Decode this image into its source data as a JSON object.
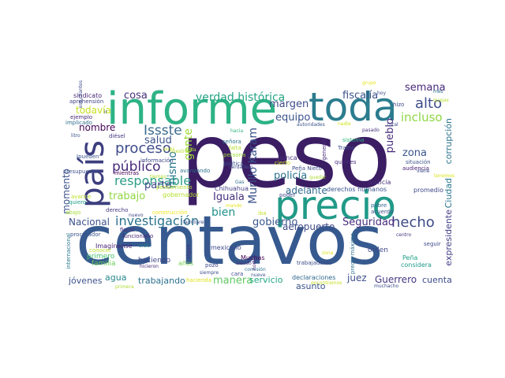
{
  "words": [
    {
      "text": "peso",
      "color": "#3b1d64"
    },
    {
      "text": "centavos",
      "color": "#365a8f"
    },
    {
      "text": "informe",
      "color": "#2db385"
    },
    {
      "text": "toda",
      "color": "#2b7c8e"
    },
    {
      "text": "precio",
      "color": "#219a88"
    },
    {
      "text": "país",
      "color": "#3c3e7f"
    },
    {
      "text": "investigación",
      "color": "#2b748c"
    },
    {
      "text": "responsable",
      "color": "#2d9e87"
    },
    {
      "text": "proceso",
      "color": "#3e4c8a"
    },
    {
      "text": "Issste",
      "color": "#3a6b8f"
    },
    {
      "text": "público",
      "color": "#472a7a"
    },
    {
      "text": "hecho",
      "color": "#3d4b87"
    },
    {
      "text": "alto",
      "color": "#3e4c8a"
    },
    {
      "text": "verdad histórica",
      "color": "#25a484"
    },
    {
      "text": "fiscalía",
      "color": "#3b528b"
    },
    {
      "text": "semana",
      "color": "#472a7a"
    },
    {
      "text": "incluso",
      "color": "#8fd744"
    },
    {
      "text": "cosa",
      "color": "#46307e"
    },
    {
      "text": "margen",
      "color": "#3e4c8a"
    },
    {
      "text": "todavía",
      "color": "#c8e020"
    },
    {
      "text": "nombre",
      "color": "#440154"
    },
    {
      "text": "momento",
      "color": "#3b528b"
    },
    {
      "text": "trabajo",
      "color": "#90d743"
    },
    {
      "text": "parte",
      "color": "#3e4989"
    },
    {
      "text": "salud",
      "color": "#3b528b"
    },
    {
      "text": "mismo",
      "color": "#2a788e"
    },
    {
      "text": "gente",
      "color": "#9fda3a"
    },
    {
      "text": "bien",
      "color": "#21918c"
    },
    {
      "text": "Iguala",
      "color": "#46327e"
    },
    {
      "text": "Murillo Karam",
      "color": "#3b528b"
    },
    {
      "text": "gobierno",
      "color": "#39568c"
    },
    {
      "text": "equipo",
      "color": "#3b528b"
    },
    {
      "text": "policía",
      "color": "#2c728e"
    },
    {
      "text": "pueblo",
      "color": "#472d7b"
    },
    {
      "text": "zona",
      "color": "#3a548c"
    },
    {
      "text": "adelante",
      "color": "#31688e"
    },
    {
      "text": "Seguridad",
      "color": "#472d7b"
    },
    {
      "text": "aeropuerto",
      "color": "#3e4a89"
    },
    {
      "text": "expresidente",
      "color": "#433e85"
    },
    {
      "text": "Ciudad",
      "color": "#2a788e"
    },
    {
      "text": "corrupción",
      "color": "#2c738e"
    },
    {
      "text": "Nacional",
      "color": "#3b528b"
    },
    {
      "text": "agua",
      "color": "#25858e"
    },
    {
      "text": "trabajando",
      "color": "#2d708e"
    },
    {
      "text": "manera",
      "color": "#5ec962"
    },
    {
      "text": "servicio",
      "color": "#21a685"
    },
    {
      "text": "asunto",
      "color": "#3a538b"
    },
    {
      "text": "juez",
      "color": "#3d4e8a"
    },
    {
      "text": "Guerrero",
      "color": "#453882"
    },
    {
      "text": "cuenta",
      "color": "#3e4c8a"
    },
    {
      "text": "jóvenes",
      "color": "#3b528b"
    },
    {
      "text": "hacienda",
      "color": "#dde318"
    },
    {
      "text": "gobernador",
      "color": "#b5de2b"
    },
    {
      "text": "derechos humanos",
      "color": "#3a548c"
    },
    {
      "text": "justicia",
      "color": "#46337f"
    },
    {
      "text": "promedio",
      "color": "#3e4989"
    },
    {
      "text": "Chihuahua",
      "color": "#433d84"
    },
    {
      "text": "primero",
      "color": "#48c16e"
    },
    {
      "text": "Imagínense",
      "color": "#482475"
    },
    {
      "text": "familia",
      "color": "#6ccd5a"
    },
    {
      "text": "haciendo",
      "color": "#404688"
    },
    {
      "text": "mexicano",
      "color": "#3f4889"
    },
    {
      "text": "Muchas",
      "color": "#440154"
    },
    {
      "text": "orden",
      "color": "#3e4a89"
    },
    {
      "text": "Peña",
      "color": "#1fa088"
    },
    {
      "text": "considera",
      "color": "#1e9b8a"
    },
    {
      "text": "declaraciones",
      "color": "#31688e"
    },
    {
      "text": "años",
      "color": "#7ad151"
    },
    {
      "text": "trabajadores",
      "color": "#3e4a89"
    },
    {
      "text": "sindicato",
      "color": "#482677"
    },
    {
      "text": "aprehensión",
      "color": "#414487"
    },
    {
      "text": "ejemplo",
      "color": "#482878"
    },
    {
      "text": "implicado",
      "color": "#2e6e8e"
    },
    {
      "text": "litro",
      "color": "#3a538b"
    },
    {
      "text": "diésel",
      "color": "#46337f"
    },
    {
      "text": "Ipueden",
      "color": "#3b528b"
    },
    {
      "text": "presupuesto",
      "color": "#3b528b"
    },
    {
      "text": "mientras",
      "color": "#440154"
    },
    {
      "text": "información",
      "color": "#3f4788"
    },
    {
      "text": "avanzando",
      "color": "#2d708e"
    },
    {
      "text": "pensamiento",
      "color": "#b5de2b"
    },
    {
      "text": "avance",
      "color": "#bddf26"
    },
    {
      "text": "quiero",
      "color": "#1fa088"
    },
    {
      "text": "abajo",
      "color": "#a8db34"
    },
    {
      "text": "derecho",
      "color": "#443983"
    },
    {
      "text": "nuevo",
      "color": "#404688"
    },
    {
      "text": "construcción",
      "color": "#efe51c"
    },
    {
      "text": "fiscal",
      "color": "#472a7a"
    },
    {
      "text": "sido",
      "color": "#277f8e"
    },
    {
      "text": "conocer",
      "color": "#b8de29"
    },
    {
      "text": "internacional",
      "color": "#2a768e"
    },
    {
      "text": "procurador",
      "color": "#3a548c"
    },
    {
      "text": "funcionario",
      "color": "#482475"
    },
    {
      "text": "sigue",
      "color": "#46337f"
    },
    {
      "text": "mina",
      "color": "#3b528b"
    },
    {
      "text": "señora",
      "color": "#2c738e"
    },
    {
      "text": "falta",
      "color": "#b8de29"
    },
    {
      "text": "persona",
      "color": "#a2da37"
    },
    {
      "text": "política",
      "color": "#3b528b"
    },
    {
      "text": "nunca",
      "color": "#46327e"
    },
    {
      "text": "cierto",
      "color": "#c8e020"
    },
    {
      "text": "Peña Nieto",
      "color": "#3e4a89"
    },
    {
      "text": "quiénes",
      "color": "#472d7b"
    },
    {
      "text": "Tramo",
      "color": "#3e4c8a"
    },
    {
      "text": "poder",
      "color": "#3f4889"
    },
    {
      "text": "sistema",
      "color": "#2fb47c"
    },
    {
      "text": "general",
      "color": "#472a7a"
    },
    {
      "text": "situación",
      "color": "#3b528b"
    },
    {
      "text": "audiencia",
      "color": "#482475"
    },
    {
      "text": "autoridades",
      "color": "#3a548c"
    },
    {
      "text": "nadie",
      "color": "#d0e11c"
    },
    {
      "text": "hizo",
      "color": "#3e4a89"
    },
    {
      "text": "quejas",
      "color": "#b2dd2d"
    },
    {
      "text": "total",
      "color": "#3e4c8a"
    },
    {
      "text": "seguir",
      "color": "#3e4a89"
    },
    {
      "text": "centro",
      "color": "#46337f"
    },
    {
      "text": "pobre",
      "color": "#31688e"
    },
    {
      "text": "acuerdo",
      "color": "#3b528b"
    },
    {
      "text": "precio máximo",
      "color": "#2c728e"
    },
    {
      "text": "Gas",
      "color": "#2e6e8e"
    },
    {
      "text": "mando",
      "color": "#e2e418"
    },
    {
      "text": "familiares",
      "color": "#3b528b"
    },
    {
      "text": "pozo",
      "color": "#3e4a89"
    },
    {
      "text": "siempre",
      "color": "#3e4c8a"
    },
    {
      "text": "comisión",
      "color": "#2c728e"
    },
    {
      "text": "nueve",
      "color": "#3a538b"
    },
    {
      "text": "cara",
      "color": "#3e4c8a"
    },
    {
      "text": "hicieron",
      "color": "#482878"
    },
    {
      "text": "siendo",
      "color": "#46327e"
    },
    {
      "text": "vida",
      "color": "#a5db36"
    },
    {
      "text": "iba",
      "color": "#c2df23"
    },
    {
      "text": "muchacho",
      "color": "#3e4c8a"
    },
    {
      "text": "estudiantes",
      "color": "#3e4a89"
    },
    {
      "text": "encontramos",
      "color": "#c8e020"
    },
    {
      "text": "nuestro",
      "color": "#b5de2b"
    },
    {
      "text": "hacia",
      "color": "#2fb47c"
    },
    {
      "text": "verdadero",
      "color": "#3e4c8a"
    },
    {
      "text": "norte",
      "color": "#482475"
    },
    {
      "text": "primera",
      "color": "#addc30"
    },
    {
      "text": "viene",
      "color": "#3e4c8a"
    },
    {
      "text": "mes",
      "color": "#2c728e"
    },
    {
      "text": "pasado",
      "color": "#46327e"
    },
    {
      "text": "ir",
      "color": "#3b528b"
    },
    {
      "text": "pues",
      "color": "#c2df23"
    },
    {
      "text": "tiempo",
      "color": "#b5de2b"
    },
    {
      "text": "zona",
      "color": "#e2e418"
    },
    {
      "text": "tenemos",
      "color": "#dde318"
    },
    {
      "text": "quedar",
      "color": "#addc30"
    },
    {
      "text": "grupo",
      "color": "#e5e419"
    },
    {
      "text": "hoy",
      "color": "#3e4c8a"
    }
  ]
}
